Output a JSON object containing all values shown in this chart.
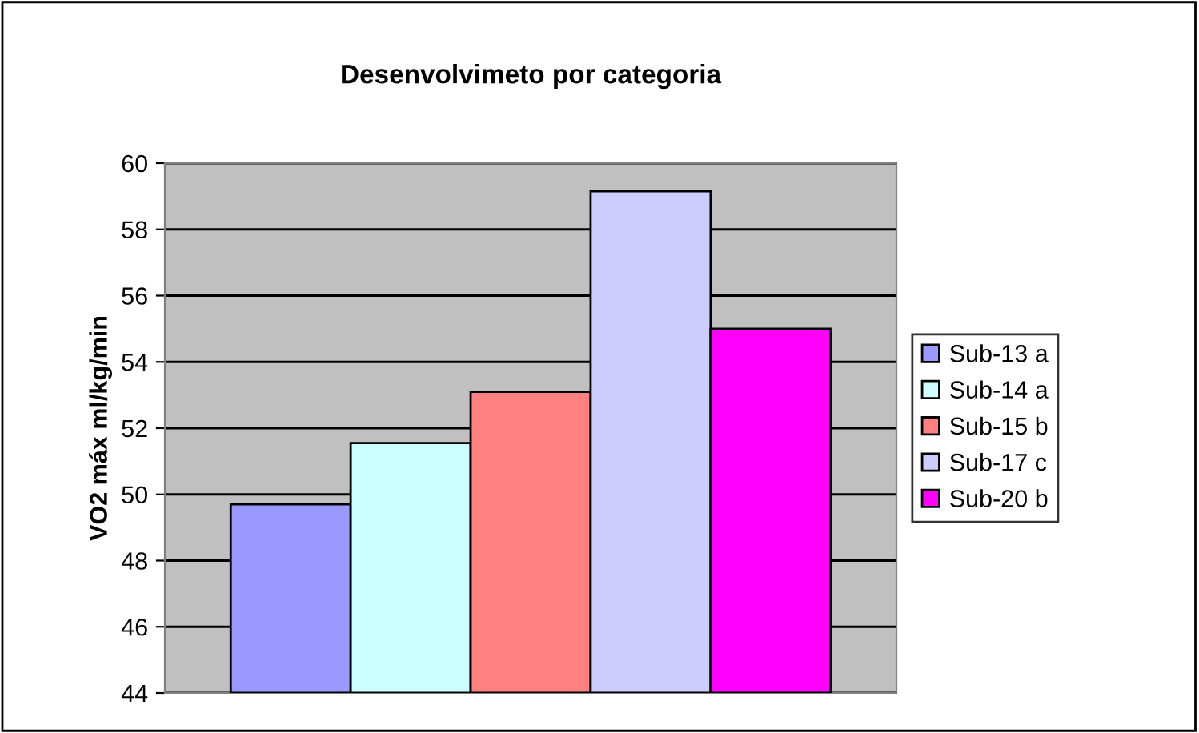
{
  "chart_data": {
    "type": "bar",
    "title": "Desenvolvimeto por categoria",
    "ylabel": "VO2 máx ml/kg/min",
    "categories": [
      null
    ],
    "series": [
      {
        "name": "Sub-13 a",
        "color": "#9999ff",
        "values": [
          49.7
        ]
      },
      {
        "name": "Sub-14 a",
        "color": "#ccffff",
        "values": [
          51.55
        ]
      },
      {
        "name": "Sub-15 b",
        "color": "#ff8080",
        "values": [
          53.1
        ]
      },
      {
        "name": "Sub-17 c",
        "color": "#ccccff",
        "values": [
          59.15
        ]
      },
      {
        "name": "Sub-20 b",
        "color": "#ff00ff",
        "values": [
          55.0
        ]
      }
    ],
    "ylim": [
      44,
      60
    ],
    "yticks": [
      44,
      46,
      48,
      50,
      52,
      54,
      56,
      58,
      60
    ],
    "grid": "y",
    "legend": "right"
  }
}
